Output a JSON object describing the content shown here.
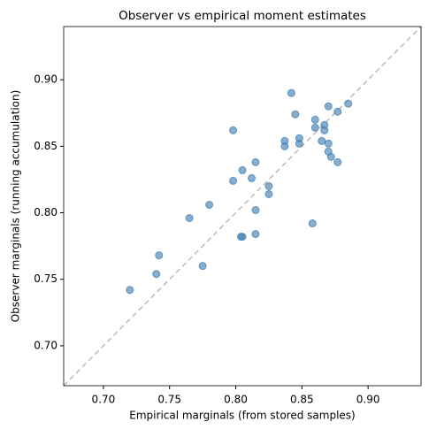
{
  "chart_data": {
    "type": "scatter",
    "title": "Observer vs empirical moment estimates",
    "x_label": "Empirical marginals (from stored samples)",
    "y_label": "Observer marginals (running accumulation)",
    "series": [
      {
        "color": "#4682b4",
        "x": [
          0.72,
          0.74,
          0.742,
          0.765,
          0.78,
          0.775,
          0.798,
          0.798,
          0.805,
          0.805,
          0.804,
          0.812,
          0.815,
          0.815,
          0.815,
          0.825,
          0.825,
          0.837,
          0.837,
          0.842,
          0.845,
          0.848,
          0.848,
          0.858,
          0.86,
          0.86,
          0.865,
          0.867,
          0.867,
          0.87,
          0.87,
          0.87,
          0.872,
          0.877,
          0.877,
          0.885
        ],
        "values": [
          0.742,
          0.754,
          0.768,
          0.796,
          0.806,
          0.76,
          0.824,
          0.862,
          0.832,
          0.782,
          0.782,
          0.826,
          0.838,
          0.802,
          0.784,
          0.82,
          0.814,
          0.854,
          0.85,
          0.89,
          0.874,
          0.856,
          0.852,
          0.792,
          0.87,
          0.864,
          0.854,
          0.866,
          0.862,
          0.88,
          0.852,
          0.846,
          0.842,
          0.876,
          0.838,
          0.882
        ]
      }
    ],
    "xlim": [
      0.67,
      0.94
    ],
    "ylim": [
      0.67,
      0.94
    ],
    "xticks": [
      {
        "value": 0.7,
        "label": "0.70"
      },
      {
        "value": 0.75,
        "label": "0.75"
      },
      {
        "value": 0.8,
        "label": "0.80"
      },
      {
        "value": 0.85,
        "label": "0.85"
      },
      {
        "value": 0.9,
        "label": "0.90"
      }
    ],
    "yticks": [
      {
        "value": 0.7,
        "label": "0.70"
      },
      {
        "value": 0.75,
        "label": "0.75"
      },
      {
        "value": 0.8,
        "label": "0.80"
      },
      {
        "value": 0.85,
        "label": "0.85"
      },
      {
        "value": 0.9,
        "label": "0.90"
      }
    ],
    "grid": false
  }
}
